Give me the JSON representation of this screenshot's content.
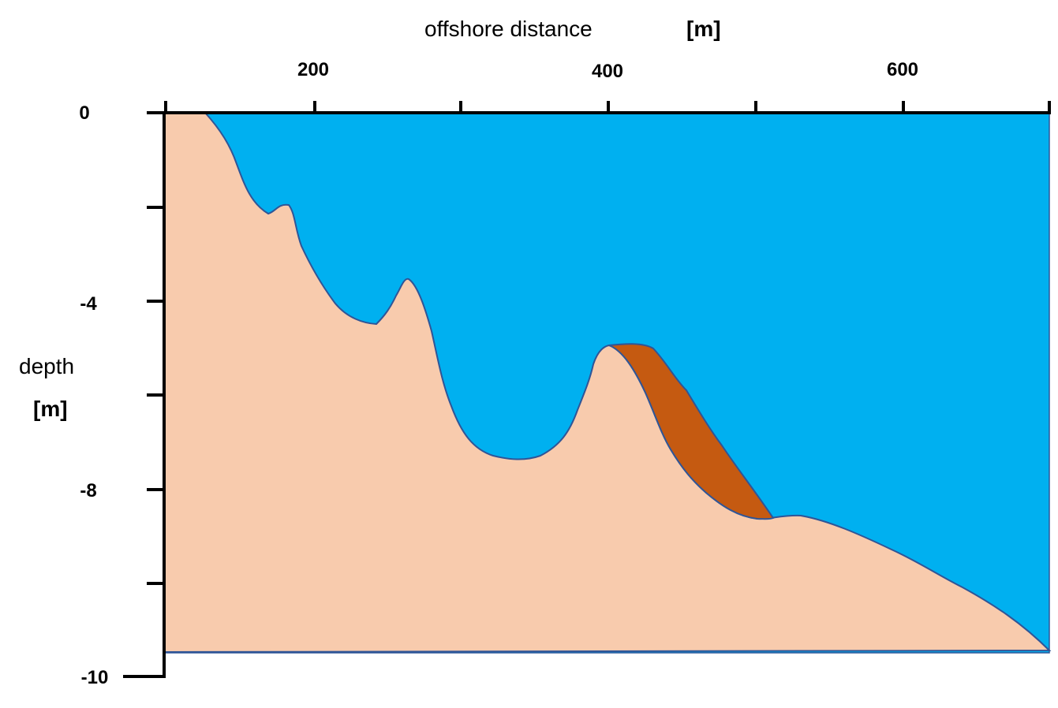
{
  "x_axis": {
    "title": "offshore distance",
    "unit": "[m]",
    "tick_labels": [
      "200",
      "400",
      "600"
    ]
  },
  "y_axis": {
    "title": "depth",
    "unit": "[m]",
    "tick_labels": [
      "0",
      "-4",
      "-8",
      "-10"
    ]
  },
  "colors": {
    "water": "#00B0F0",
    "seabed_sand": "#F8CBAD",
    "sediment_deposit": "#C55A11",
    "outline": "#2F5597",
    "axis": "#000000"
  }
}
